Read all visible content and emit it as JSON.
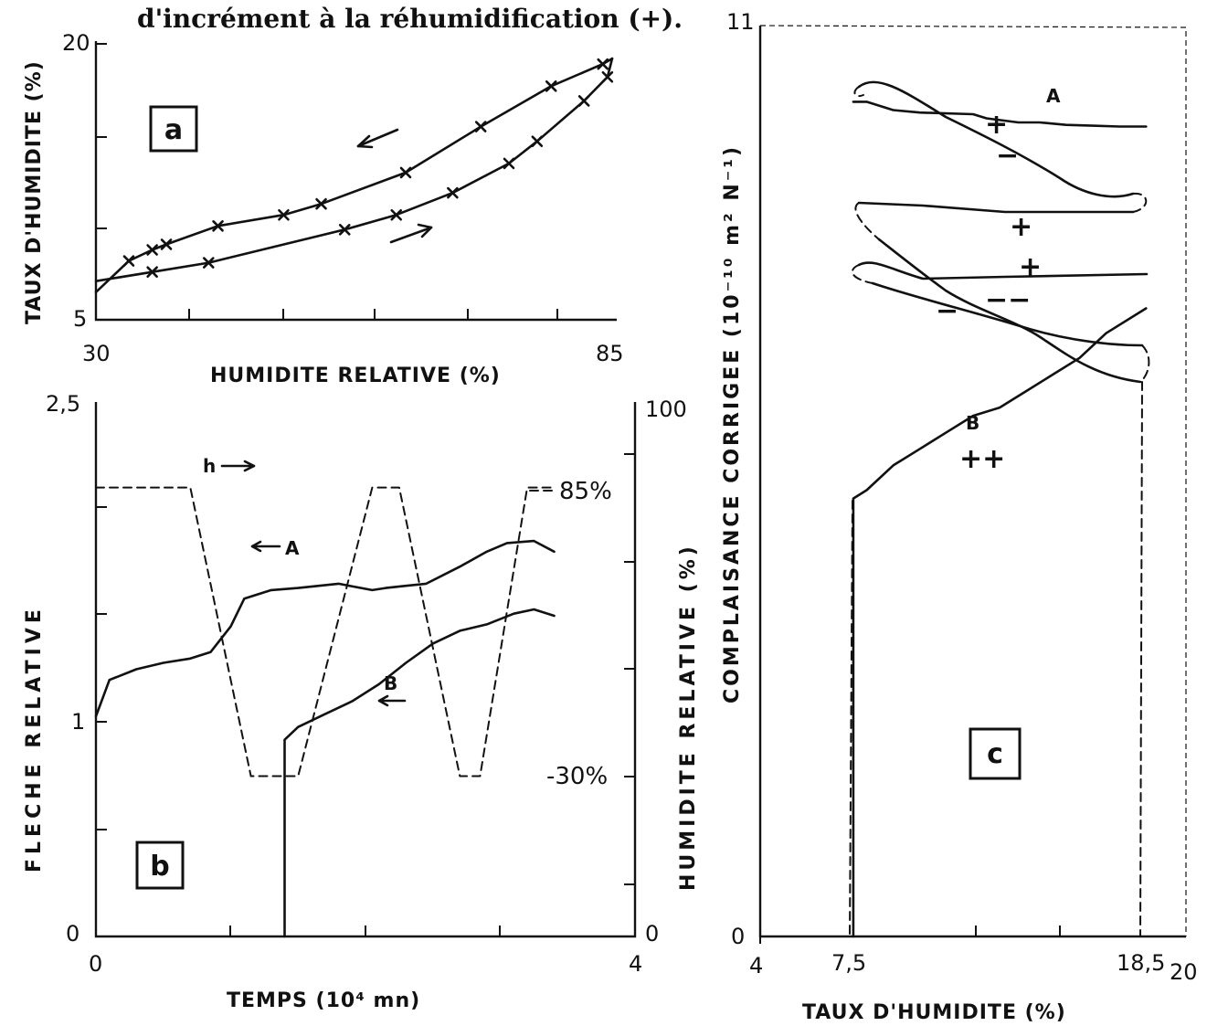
{
  "caption": "d'incrément à la réhumidification (+).",
  "chart_data": [
    {
      "panel": "a",
      "type": "line",
      "xlabel": "HUMIDITE RELATIVE (%)",
      "ylabel": "TAUX D'HUMIDITE (%)",
      "xlim": [
        30,
        85
      ],
      "ylim": [
        5,
        20
      ],
      "x_ticks": [
        "30",
        "85"
      ],
      "y_ticks": [
        "5",
        "20"
      ],
      "series": [
        {
          "x": [
            30,
            33.5,
            36,
            37.5,
            43,
            50,
            54,
            63,
            71,
            78.5,
            84,
            85
          ],
          "y": [
            6.5,
            8.2,
            8.8,
            9.1,
            10.1,
            10.7,
            11.3,
            13.0,
            15.5,
            17.7,
            18.9,
            19.2
          ]
        },
        {
          "x": [
            85,
            84.5,
            82,
            77,
            74,
            68,
            62,
            56.5,
            42,
            36,
            30
          ],
          "y": [
            19.2,
            18.2,
            16.9,
            14.7,
            13.5,
            11.9,
            10.7,
            9.9,
            8.1,
            7.6,
            7.1
          ]
        }
      ],
      "markers": "x",
      "annotations": [
        "a"
      ]
    },
    {
      "panel": "b",
      "type": "line",
      "xlabel": "TEMPS (10⁴ mn)",
      "ylabel": "FLECHE RELATIVE",
      "ylabel_right": "HUMIDITE RELATIVE (%)",
      "xlim": [
        0,
        4
      ],
      "ylim": [
        0,
        2.5
      ],
      "ylim_right": [
        0,
        100
      ],
      "x_ticks": [
        "0",
        "4"
      ],
      "y_ticks": [
        "0",
        "1",
        "2,5"
      ],
      "y_ticks_right": [
        "0",
        "100"
      ],
      "series": [
        {
          "name": "A",
          "x": [
            0,
            0.1,
            0.3,
            0.5,
            0.7,
            0.85,
            1.0,
            1.1,
            1.3,
            1.5,
            1.8,
            2.05,
            2.15,
            2.3,
            2.45,
            2.7,
            2.9,
            3.05,
            3.25,
            3.4
          ],
          "y": [
            1.03,
            1.2,
            1.25,
            1.28,
            1.3,
            1.33,
            1.45,
            1.58,
            1.62,
            1.63,
            1.65,
            1.62,
            1.63,
            1.64,
            1.65,
            1.73,
            1.8,
            1.84,
            1.85,
            1.8
          ]
        },
        {
          "name": "B",
          "x": [
            1.4,
            1.4,
            1.5,
            1.7,
            1.9,
            2.1,
            2.3,
            2.5,
            2.7,
            2.9,
            3.1,
            3.25,
            3.4
          ],
          "y": [
            0,
            0.92,
            0.98,
            1.04,
            1.1,
            1.18,
            1.28,
            1.37,
            1.43,
            1.46,
            1.51,
            1.53,
            1.5
          ]
        },
        {
          "name": "h",
          "x": [
            0,
            0.7,
            1.15,
            1.5,
            2.05,
            2.25,
            2.7,
            2.85,
            3.2,
            3.4
          ],
          "y_right": [
            84,
            84,
            30,
            30,
            84,
            84,
            30,
            30,
            84,
            84
          ]
        }
      ],
      "annotations": [
        "h",
        "A",
        "B",
        "85%",
        "-30%",
        "b"
      ]
    },
    {
      "panel": "c",
      "type": "line",
      "xlabel": "TAUX D'HUMIDITE (%)",
      "ylabel": "COMPLAISANCE CORRIGEE (10⁻¹⁰ m² N⁻¹)",
      "xlim": [
        4,
        20
      ],
      "ylim": [
        0,
        11
      ],
      "x_ticks": [
        "4",
        "7,5",
        "18,5",
        "20"
      ],
      "y_ticks": [
        "0",
        "11"
      ],
      "series": [
        {
          "name": "A",
          "x": [
            7.5,
            8,
            9,
            10,
            12,
            12.5,
            13.7,
            14.5,
            15.5,
            16.5,
            17.5,
            18.3,
            18.5
          ],
          "y": [
            10.1,
            10.1,
            10.0,
            9.97,
            9.95,
            9.9,
            9.85,
            9.85,
            9.82,
            9.81,
            9.8,
            9.8,
            9.8
          ]
        },
        {
          "name": "B",
          "x": [
            7.5,
            7.5,
            8,
            9,
            10,
            11,
            12,
            13,
            14,
            15,
            16,
            17,
            18.5
          ],
          "y": [
            0,
            5.3,
            5.4,
            5.7,
            5.9,
            6.1,
            6.3,
            6.4,
            6.6,
            6.8,
            7.0,
            7.3,
            7.6
          ]
        }
      ],
      "annotations": [
        "A",
        "B",
        "+",
        "−",
        "+",
        "+",
        "−−",
        "−",
        "++",
        "c"
      ]
    }
  ]
}
